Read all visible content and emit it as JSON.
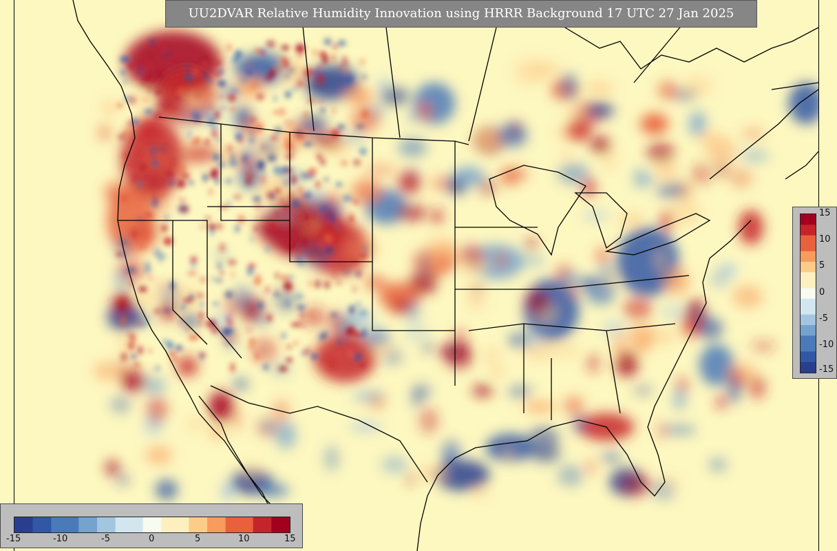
{
  "title": "UU2DVAR Relative Humidity Innovation using HRRR Background 17 UTC 27 Jan 2025",
  "colorbar": {
    "min": -15,
    "max": 15,
    "horizontal_tick_labels": [
      "-15",
      "-10",
      "-5",
      "0",
      "5",
      "10",
      "15"
    ],
    "vertical_tick_labels": [
      "15",
      "10",
      "5",
      "0",
      "-5",
      "-10",
      "-15"
    ],
    "colors": [
      "#2a3e8e",
      "#3158a4",
      "#4a7ab8",
      "#74a3cd",
      "#a3c6e0",
      "#d2e6ef",
      "#f7fbf0",
      "#fdefbf",
      "#fdcc8a",
      "#f89b5c",
      "#e8603c",
      "#c6242b",
      "#a3001e"
    ]
  },
  "map": {
    "background_color": "#fdf7c0",
    "border_color": "#000000"
  }
}
